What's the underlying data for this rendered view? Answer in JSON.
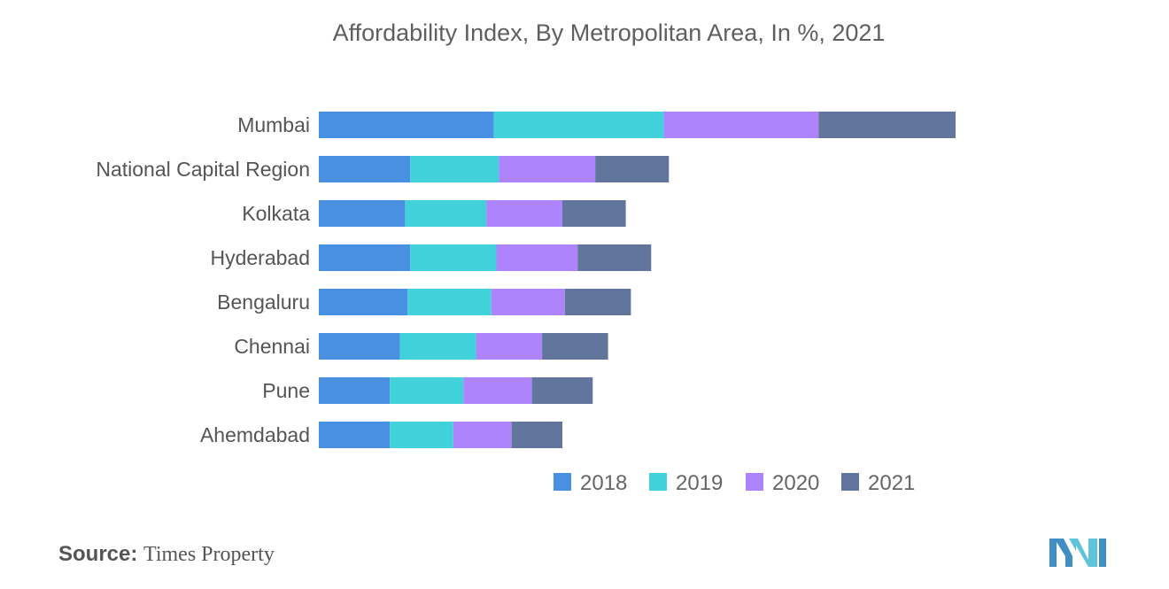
{
  "chart_data": {
    "type": "bar",
    "orientation": "horizontal",
    "stacked": true,
    "title": "Affordability Index, By Metropolitan Area, In %,  2021",
    "categories": [
      "Mumbai",
      "National Capital Region",
      "Kolkata",
      "Hyderabad",
      "Bengaluru",
      "Chennai",
      "Pune",
      "Ahemdabad"
    ],
    "series": [
      {
        "name": "2018",
        "color": "#4a90e2",
        "values": [
          69,
          36,
          34,
          36,
          35,
          32,
          28,
          28
        ]
      },
      {
        "name": "2019",
        "color": "#40d1db",
        "values": [
          67,
          35,
          32,
          34,
          33,
          30,
          29,
          25
        ]
      },
      {
        "name": "2020",
        "color": "#ad84fc",
        "values": [
          61,
          38,
          30,
          32,
          29,
          26,
          27,
          23
        ]
      },
      {
        "name": "2021",
        "color": "#62759c",
        "values": [
          54,
          29,
          25,
          29,
          26,
          26,
          24,
          20
        ]
      }
    ],
    "xlabel": "",
    "ylabel": "",
    "xlim": [
      0,
      260
    ],
    "grid": false,
    "legend_position": "bottom-center"
  },
  "source": {
    "label": "Source:",
    "text": "Times Property"
  }
}
